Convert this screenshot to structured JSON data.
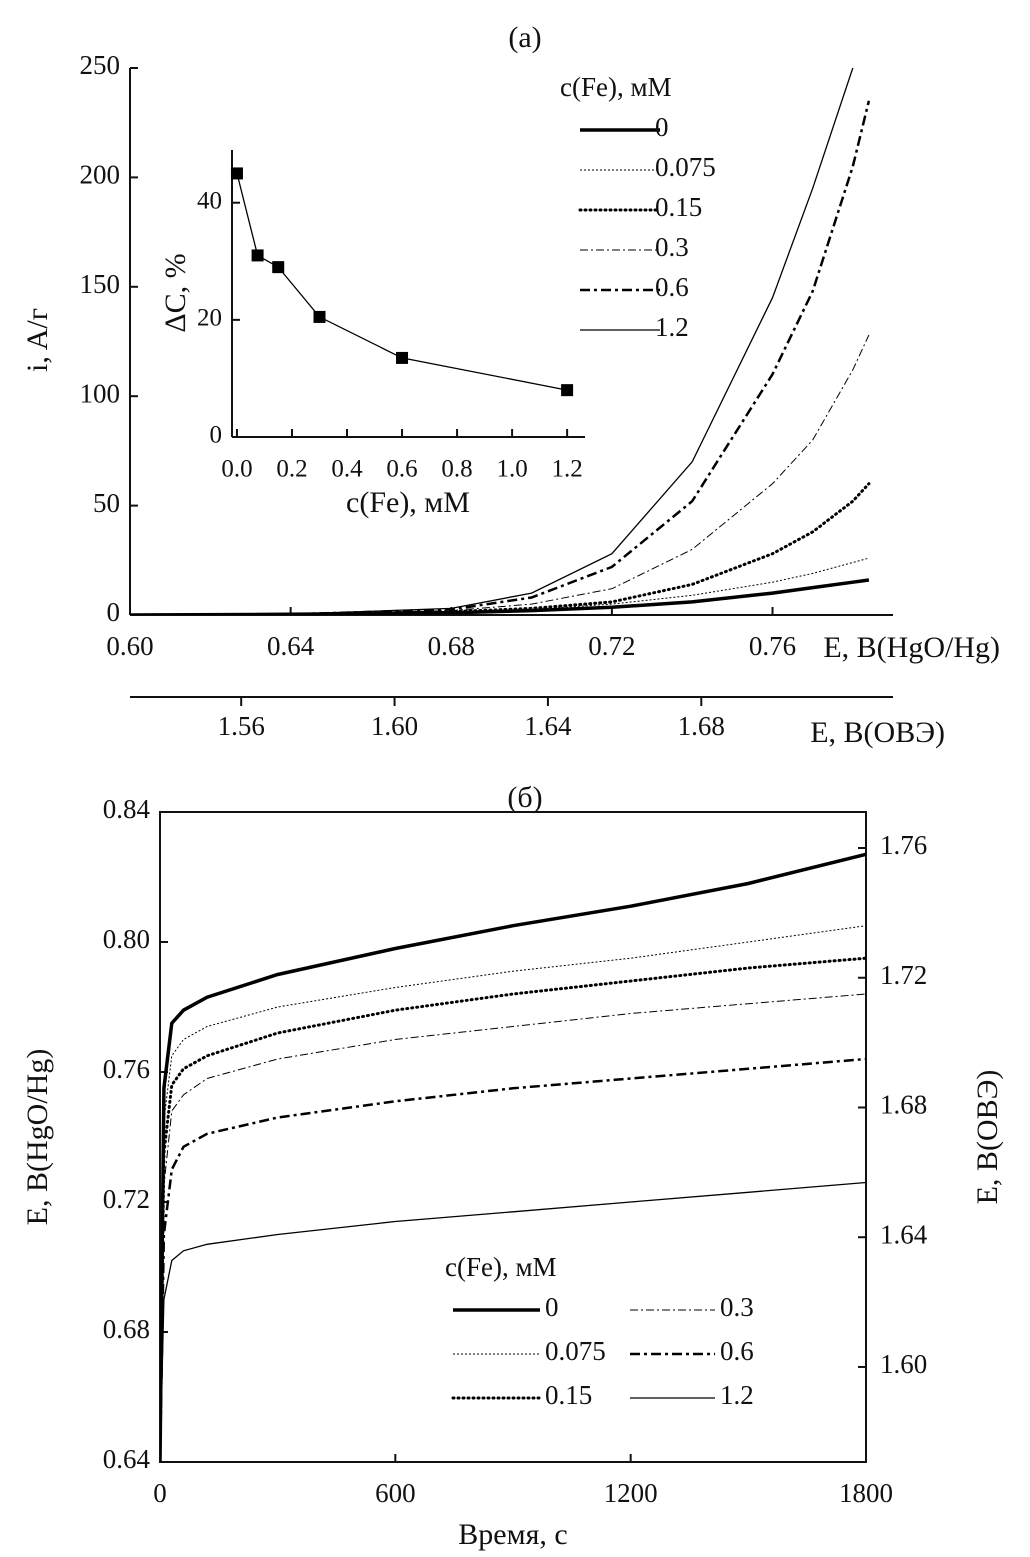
{
  "chart_data": [
    {
      "type": "line",
      "title": "(a)",
      "x_label": "E, В(HgO/Hg)",
      "x2_label": "E, В(ОВЭ)",
      "y_label": "i, A/г",
      "legend_title": "c(Fe), мМ",
      "legend": "upper right",
      "x": [
        0.6,
        0.64,
        0.68,
        0.7,
        0.72,
        0.74,
        0.76,
        0.77,
        0.78,
        0.784
      ],
      "series": [
        {
          "name": "0",
          "color": "#000000",
          "line_style": "solid-thick",
          "values": [
            0,
            0.3,
            1,
            2,
            3.5,
            6,
            10,
            12.5,
            15,
            16
          ]
        },
        {
          "name": "0.075",
          "color": "#000000",
          "line_style": "dotted-thin",
          "values": [
            0,
            0.3,
            1,
            2.5,
            5,
            9,
            15,
            19,
            24,
            26
          ]
        },
        {
          "name": "0.15",
          "color": "#000000",
          "line_style": "dotted-thick",
          "values": [
            0,
            0.3,
            1.5,
            3,
            6,
            14,
            28,
            38,
            52,
            60
          ]
        },
        {
          "name": "0.3",
          "color": "#000000",
          "line_style": "dashdot-thin",
          "values": [
            0,
            0.3,
            2,
            5,
            12,
            30,
            60,
            80,
            112,
            128
          ]
        },
        {
          "name": "0.6",
          "color": "#000000",
          "line_style": "dashdot-thick",
          "values": [
            0,
            0.3,
            2.5,
            8,
            22,
            52,
            110,
            148,
            205,
            235
          ]
        },
        {
          "name": "1.2",
          "color": "#000000",
          "line_style": "solid-thin",
          "values": [
            0,
            0.4,
            3,
            10,
            28,
            70,
            145,
            195,
            250,
            null
          ]
        }
      ],
      "xlim": [
        0.6,
        0.79
      ],
      "xticks": [
        {
          "value": 0.6,
          "label": "0.60"
        },
        0.64,
        0.68,
        0.72,
        0.76
      ],
      "x2lim": [
        1.531,
        1.73
      ],
      "x2ticks": [
        1.56,
        {
          "value": 1.6,
          "label": "1.60"
        },
        1.64,
        1.68
      ],
      "ylim": [
        0,
        250
      ],
      "yticks": [
        0,
        50,
        100,
        150,
        200,
        250
      ]
    },
    {
      "type": "line",
      "markers": true,
      "x_label": "c(Fe), мМ",
      "y_label": "ΔC, %",
      "x": [
        0,
        0.075,
        0.15,
        0.3,
        0.6,
        1.2
      ],
      "series": [
        {
          "color": "#000000",
          "line_style": "solid-thin",
          "values": [
            45,
            31,
            29,
            20.5,
            13.5,
            8
          ]
        }
      ],
      "xlim": [
        -0.018,
        1.265
      ],
      "xticks": [
        {
          "value": 0,
          "label": "0.0"
        },
        0.2,
        0.4,
        0.6,
        0.8,
        {
          "value": 1,
          "label": "1.0"
        },
        1.2
      ],
      "ylim": [
        0,
        49
      ],
      "yticks": [
        0,
        20,
        40
      ]
    },
    {
      "type": "line",
      "title": "(б)",
      "x_label": "Время, с",
      "y_label": "E, В(HgO/Hg)",
      "y2_label": "E, В(ОВЭ)",
      "legend_title": "c(Fe), мМ",
      "legend": "lower right",
      "x": [
        0,
        10,
        30,
        60,
        120,
        300,
        600,
        900,
        1200,
        1500,
        1800
      ],
      "series": [
        {
          "name": "0",
          "color": "#000000",
          "line_style": "solid-thick",
          "values": [
            0.64,
            0.755,
            0.775,
            0.779,
            0.783,
            0.79,
            0.798,
            0.805,
            0.811,
            0.818,
            0.827
          ]
        },
        {
          "name": "0.075",
          "color": "#000000",
          "line_style": "dotted-thin",
          "values": [
            0.64,
            0.745,
            0.765,
            0.77,
            0.774,
            0.78,
            0.786,
            0.791,
            0.795,
            0.8,
            0.805
          ]
        },
        {
          "name": "0.15",
          "color": "#000000",
          "line_style": "dotted-thick",
          "values": [
            0.64,
            0.735,
            0.756,
            0.761,
            0.765,
            0.772,
            0.779,
            0.784,
            0.788,
            0.792,
            0.795
          ]
        },
        {
          "name": "0.3",
          "color": "#000000",
          "line_style": "dashdot-thin",
          "values": [
            0.64,
            0.725,
            0.748,
            0.753,
            0.758,
            0.764,
            0.77,
            0.774,
            0.778,
            0.781,
            0.784
          ]
        },
        {
          "name": "0.6",
          "color": "#000000",
          "line_style": "dashdot-thick",
          "values": [
            0.64,
            0.71,
            0.73,
            0.737,
            0.741,
            0.746,
            0.751,
            0.755,
            0.758,
            0.761,
            0.764
          ]
        },
        {
          "name": "1.2",
          "color": "#000000",
          "line_style": "solid-thin",
          "values": [
            0.64,
            0.69,
            0.702,
            0.705,
            0.707,
            0.71,
            0.714,
            0.717,
            0.72,
            0.723,
            0.726
          ]
        }
      ],
      "xlim": [
        0,
        1800
      ],
      "xticks": [
        0,
        600,
        1200,
        1800
      ],
      "ylim": [
        0.64,
        0.84
      ],
      "yticks": [
        0.64,
        0.68,
        0.72,
        0.76,
        {
          "value": 0.8,
          "label": "0.80"
        },
        0.84
      ],
      "y2lim": [
        1.5707,
        1.7711
      ],
      "y2ticks": [
        {
          "value": 1.6,
          "label": "1.60"
        },
        1.64,
        1.68,
        1.72,
        1.76
      ]
    }
  ]
}
